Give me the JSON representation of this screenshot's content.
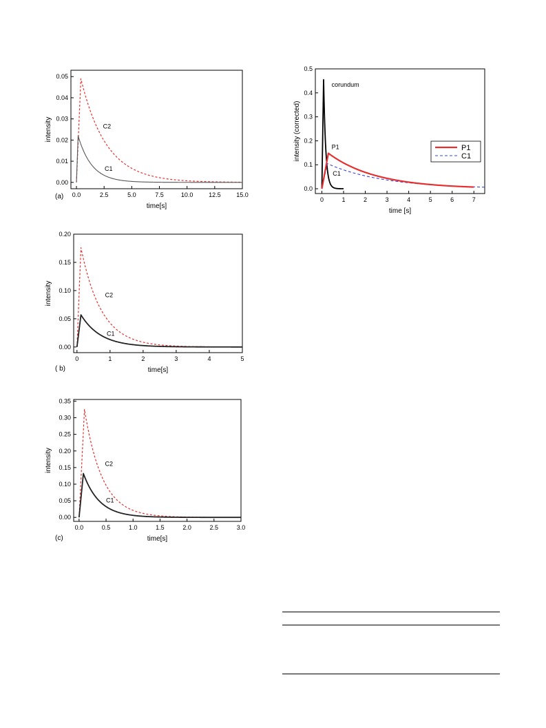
{
  "colors": {
    "c1": "#555555",
    "c1_dark": "#222222",
    "c2": "#e53030",
    "p1": "#e53030",
    "c1_blue": "#3344dd",
    "corundum": "#000000"
  },
  "chart_data": [
    {
      "id": "a",
      "type": "line",
      "panel_label": "(a)",
      "xlabel": "time[s]",
      "ylabel": "intensity",
      "xlim": [
        -0.5,
        15.0
      ],
      "ylim": [
        -0.003,
        0.053
      ],
      "xticks": [
        "0.0",
        "2.5",
        "5.0",
        "7.5",
        "10.0",
        "12.5",
        "15.0"
      ],
      "xtick_values": [
        0,
        2.5,
        5,
        7.5,
        10,
        12.5,
        15
      ],
      "yticks": [
        "0.00",
        "0.01",
        "0.02",
        "0.03",
        "0.04",
        "0.05"
      ],
      "ytick_values": [
        0,
        0.01,
        0.02,
        0.03,
        0.04,
        0.05
      ],
      "series": [
        {
          "name": "C2",
          "style": "dashed",
          "peak_x": 0.4,
          "peak_y": 0.049,
          "tau": 2.3,
          "x_end": 15
        },
        {
          "name": "C1",
          "style": "solid",
          "peak_x": 0.15,
          "peak_y": 0.022,
          "tau": 1.25,
          "x_end": 15
        }
      ],
      "annotations": [
        {
          "text": "C2",
          "x": 2.4,
          "y": 0.0255
        },
        {
          "text": "C1",
          "x": 2.55,
          "y": 0.0055
        }
      ]
    },
    {
      "id": "b",
      "type": "line",
      "panel_label": "( b)",
      "xlabel": "time[s]",
      "ylabel": "intensity",
      "xlim": [
        -0.1,
        5.0
      ],
      "ylim": [
        -0.01,
        0.2
      ],
      "xticks": [
        "0",
        "1",
        "2",
        "3",
        "4",
        "5"
      ],
      "xtick_values": [
        0,
        1,
        2,
        3,
        4,
        5
      ],
      "yticks": [
        "0.00",
        "0.05",
        "0.10",
        "0.15",
        "0.20"
      ],
      "ytick_values": [
        0,
        0.05,
        0.1,
        0.15,
        0.2
      ],
      "series": [
        {
          "name": "C2",
          "style": "dashed",
          "peak_x": 0.12,
          "peak_y": 0.176,
          "tau": 0.62,
          "x_end": 5
        },
        {
          "name": "C1",
          "style": "solid",
          "peak_x": 0.12,
          "peak_y": 0.057,
          "tau": 0.6,
          "x_end": 5
        }
      ],
      "annotations": [
        {
          "text": "C2",
          "x": 0.85,
          "y": 0.088
        },
        {
          "text": "C1",
          "x": 0.9,
          "y": 0.02
        }
      ]
    },
    {
      "id": "c",
      "type": "line",
      "panel_label": "(c)",
      "xlabel": "time[s]",
      "ylabel": "intensity",
      "xlim": [
        -0.1,
        3.0
      ],
      "ylim": [
        -0.012,
        0.355
      ],
      "xticks": [
        "0.0",
        "0.5",
        "1.0",
        "1.5",
        "2.0",
        "2.5",
        "3.0"
      ],
      "xtick_values": [
        0,
        0.5,
        1,
        1.5,
        2,
        2.5,
        3
      ],
      "yticks": [
        "0.00",
        "0.05",
        "0.10",
        "0.15",
        "0.20",
        "0.25",
        "0.30",
        "0.35"
      ],
      "ytick_values": [
        0,
        0.05,
        0.1,
        0.15,
        0.2,
        0.25,
        0.3,
        0.35
      ],
      "series": [
        {
          "name": "C2",
          "style": "dashed",
          "peak_x": 0.1,
          "peak_y": 0.325,
          "tau": 0.33,
          "x_end": 3
        },
        {
          "name": "C1",
          "style": "solid",
          "peak_x": 0.08,
          "peak_y": 0.132,
          "tau": 0.3,
          "x_end": 3
        }
      ],
      "annotations": [
        {
          "text": "C2",
          "x": 0.48,
          "y": 0.155
        },
        {
          "text": "C1",
          "x": 0.5,
          "y": 0.045
        }
      ]
    },
    {
      "id": "d",
      "type": "line",
      "panel_label": "",
      "xlabel": "time [s]",
      "ylabel": "intensity (corrected)",
      "xlim": [
        -0.3,
        7.5
      ],
      "ylim": [
        -0.02,
        0.5
      ],
      "xticks": [
        "0",
        "1",
        "2",
        "3",
        "4",
        "5",
        "6",
        "7"
      ],
      "xtick_values": [
        0,
        1,
        2,
        3,
        4,
        5,
        6,
        7
      ],
      "yticks": [
        "0.0",
        "0.1",
        "0.2",
        "0.3",
        "0.4",
        "0.5"
      ],
      "ytick_values": [
        0,
        0.1,
        0.2,
        0.3,
        0.4,
        0.5
      ],
      "legend": {
        "position": "right",
        "entries": [
          {
            "name": "P1",
            "style": "solid"
          },
          {
            "name": "C1",
            "style": "dashed"
          }
        ]
      },
      "series": [
        {
          "name": "corundum",
          "style": "solid",
          "peak_x": 0.08,
          "peak_y": 0.455,
          "tau": 0.1,
          "x_end": 1.0
        },
        {
          "name": "C1",
          "style": "dashed",
          "peak_x": 0.25,
          "peak_y": 0.105,
          "tau": 2.6,
          "x_end": 7.5
        },
        {
          "name": "P1",
          "style": "solid",
          "peak_x": 0.3,
          "peak_y": 0.148,
          "tau": 2.2,
          "x_end": 7.0
        }
      ],
      "annotations": [
        {
          "text": "corundum",
          "x": 0.45,
          "y": 0.425
        },
        {
          "text": "P1",
          "x": 0.45,
          "y": 0.165
        },
        {
          "text": "C1",
          "x": 0.5,
          "y": 0.055
        }
      ]
    }
  ]
}
